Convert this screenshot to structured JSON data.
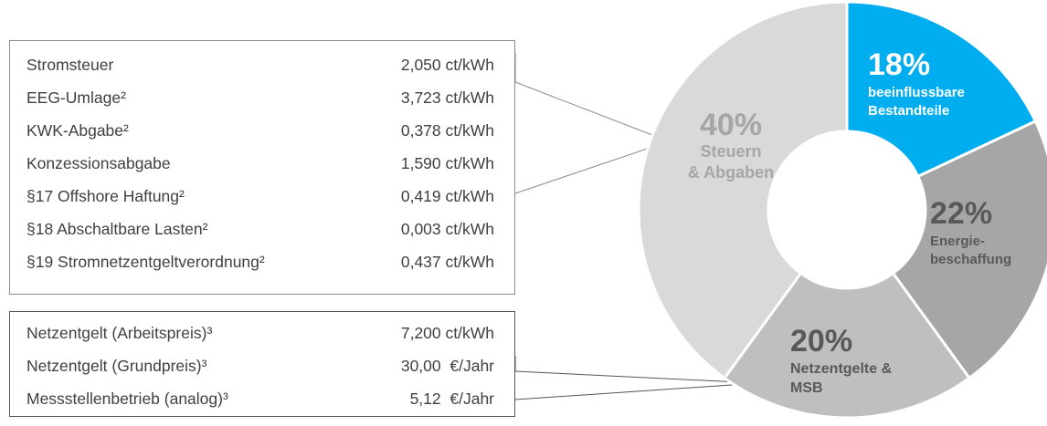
{
  "tables": {
    "taxes": [
      {
        "label": "Stromsteuer",
        "value": "2,050 ct/kWh"
      },
      {
        "label": "EEG-Umlage²",
        "value": "3,723 ct/kWh"
      },
      {
        "label": "KWK-Abgabe²",
        "value": "0,378 ct/kWh"
      },
      {
        "label": "Konzessionsabgabe",
        "value": "1,590 ct/kWh"
      },
      {
        "label": "§17 Offshore Haftung²",
        "value": "0,419 ct/kWh"
      },
      {
        "label": "§18 Abschaltbare Lasten²",
        "value": "0,003 ct/kWh"
      },
      {
        "label": "§19 Stromnetzentgeltverordnung²",
        "value": "0,437 ct/kWh"
      }
    ],
    "network": [
      {
        "label": "Netzentgelt (Arbeitspreis)³",
        "value": "7,200 ct/kWh"
      },
      {
        "label": "Netzentgelt (Grundpreis)³",
        "value": "30,00  €/Jahr"
      },
      {
        "label": "Messstellenbetrieb (analog)³",
        "value": "5,12  €/Jahr"
      }
    ]
  },
  "chart_data": {
    "type": "pie",
    "variant": "donut",
    "slices": [
      {
        "pct_label": "18%",
        "value": 18,
        "lines": [
          "beeinflussbare",
          "Bestandteile"
        ],
        "color": "#00aeef",
        "text_color": "#ffffff"
      },
      {
        "pct_label": "22%",
        "value": 22,
        "lines": [
          "Energie-",
          "beschaffung"
        ],
        "color": "#a6a6a6",
        "text_color": "#595959"
      },
      {
        "pct_label": "20%",
        "value": 20,
        "lines": [
          "Netzentgelte &",
          "MSB"
        ],
        "color": "#bfbfbf",
        "text_color": "#595959"
      },
      {
        "pct_label": "40%",
        "value": 40,
        "lines": [
          "Steuern",
          "& Abgaben"
        ],
        "color": "#d9d9d9",
        "text_color": "#a6a6a6"
      }
    ]
  }
}
